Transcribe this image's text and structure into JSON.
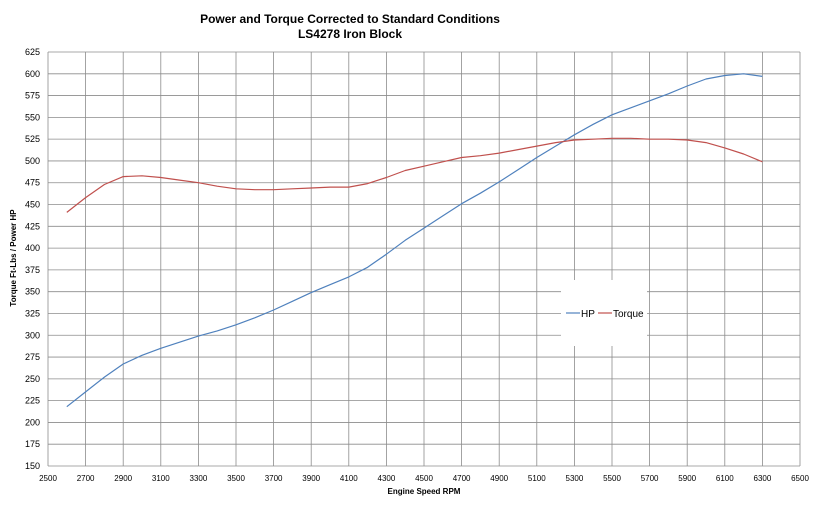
{
  "chart_data": {
    "type": "line",
    "title": "Power and Torque Corrected to Standard Conditions",
    "subtitle": "LS4278 Iron Block",
    "xlabel": "Engine Speed RPM",
    "ylabel": "Torque Ft-Lbs / Power HP",
    "xlim": [
      2500,
      6500
    ],
    "ylim": [
      150,
      625
    ],
    "x_ticks": [
      2500,
      2700,
      2900,
      3100,
      3300,
      3500,
      3700,
      3900,
      4100,
      4300,
      4500,
      4700,
      4900,
      5100,
      5300,
      5500,
      5700,
      5900,
      6100,
      6300,
      6500
    ],
    "y_ticks": [
      150,
      175,
      200,
      225,
      250,
      275,
      300,
      325,
      350,
      375,
      400,
      425,
      450,
      475,
      500,
      525,
      550,
      575,
      600,
      625
    ],
    "grid": true,
    "legend_position": "right",
    "series": [
      {
        "name": "HP",
        "color": "#4f81bd",
        "x": [
          2600,
          2700,
          2800,
          2900,
          3000,
          3100,
          3200,
          3300,
          3400,
          3500,
          3600,
          3700,
          3800,
          3900,
          4000,
          4100,
          4200,
          4300,
          4400,
          4500,
          4600,
          4700,
          4800,
          4900,
          5000,
          5100,
          5200,
          5300,
          5400,
          5500,
          5600,
          5700,
          5800,
          5900,
          6000,
          6100,
          6200,
          6300
        ],
        "values": [
          218,
          235,
          252,
          267,
          277,
          285,
          292,
          299,
          305,
          312,
          320,
          329,
          339,
          349,
          358,
          367,
          378,
          393,
          409,
          423,
          437,
          451,
          463,
          476,
          490,
          504,
          517,
          530,
          542,
          553,
          561,
          569,
          577,
          586,
          594,
          598,
          600,
          597
        ]
      },
      {
        "name": "Torque",
        "color": "#c0504d",
        "x": [
          2600,
          2700,
          2800,
          2900,
          3000,
          3100,
          3200,
          3300,
          3400,
          3500,
          3600,
          3700,
          3800,
          3900,
          4000,
          4100,
          4200,
          4300,
          4400,
          4500,
          4600,
          4700,
          4800,
          4900,
          5000,
          5100,
          5200,
          5300,
          5400,
          5500,
          5600,
          5700,
          5800,
          5900,
          6000,
          6100,
          6200,
          6300
        ],
        "values": [
          441,
          458,
          473,
          482,
          483,
          481,
          478,
          475,
          471,
          468,
          467,
          467,
          468,
          469,
          470,
          470,
          474,
          481,
          489,
          494,
          499,
          504,
          506,
          509,
          513,
          517,
          521,
          524,
          525,
          526,
          526,
          525,
          525,
          524,
          521,
          515,
          508,
          499
        ]
      }
    ]
  }
}
